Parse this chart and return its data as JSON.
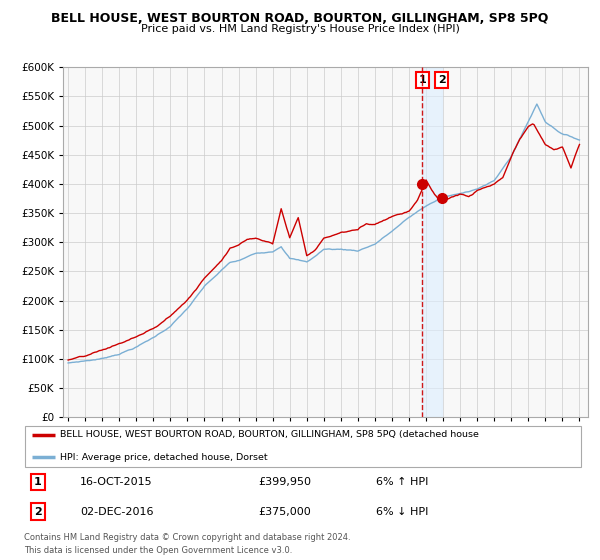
{
  "title": "BELL HOUSE, WEST BOURTON ROAD, BOURTON, GILLINGHAM, SP8 5PQ",
  "subtitle": "Price paid vs. HM Land Registry's House Price Index (HPI)",
  "ylim": [
    0,
    600000
  ],
  "yticks": [
    0,
    50000,
    100000,
    150000,
    200000,
    250000,
    300000,
    350000,
    400000,
    450000,
    500000,
    550000,
    600000
  ],
  "line1_color": "#cc0000",
  "line2_color": "#7bafd4",
  "line1_label": "BELL HOUSE, WEST BOURTON ROAD, BOURTON, GILLINGHAM, SP8 5PQ (detached house",
  "line2_label": "HPI: Average price, detached house, Dorset",
  "sale1_date_num": 2015.79,
  "sale1_price": 399950,
  "sale2_date_num": 2016.92,
  "sale2_price": 375000,
  "footer": "Contains HM Land Registry data © Crown copyright and database right 2024.\nThis data is licensed under the Open Government Licence v3.0.",
  "background_color": "#ffffff",
  "grid_color": "#cccccc",
  "shade_color": "#ddeeff"
}
